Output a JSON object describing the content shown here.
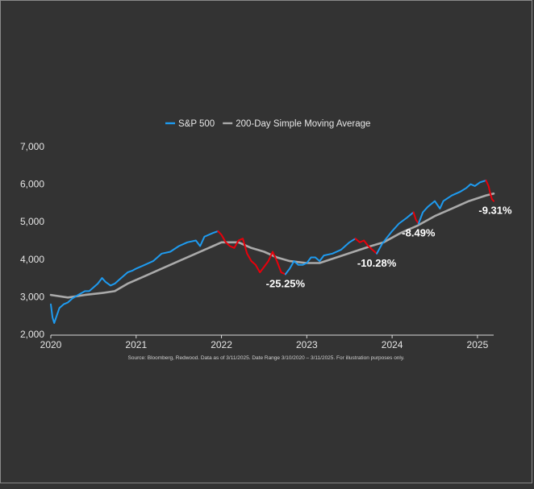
{
  "colors": {
    "background": "#333333",
    "sp500": "#1e9bf0",
    "drawdown": "#e8000b",
    "sma": "#aaaaaa",
    "text": "#e6e6e6"
  },
  "legend": [
    {
      "label": "S&P 500",
      "color": "#1e9bf0"
    },
    {
      "label": "200-Day Simple Moving Average",
      "color": "#aaaaaa"
    }
  ],
  "source_note": "Source: Bloomberg, Redwood. Data as of 3/11/2025. Date Range 3/10/2020 – 3/11/2025. For illustration purposes only.",
  "chart_data": {
    "type": "line",
    "title": "",
    "xlabel": "",
    "ylabel": "",
    "xlim": [
      2020.0,
      2025.19
    ],
    "ylim": [
      2000,
      7000
    ],
    "x_ticks": [
      "2020",
      "2021",
      "2022",
      "2023",
      "2024",
      "2025"
    ],
    "y_ticks": [
      "2,000",
      "3,000",
      "4,000",
      "5,000",
      "6,000",
      "7,000"
    ],
    "grid": false,
    "legend_position": "top",
    "series": [
      {
        "name": "S&P 500",
        "color": "#1e9bf0",
        "points": [
          [
            2020.0,
            2800
          ],
          [
            2020.02,
            2450
          ],
          [
            2020.04,
            2300
          ],
          [
            2020.07,
            2500
          ],
          [
            2020.1,
            2700
          ],
          [
            2020.15,
            2800
          ],
          [
            2020.2,
            2850
          ],
          [
            2020.25,
            2950
          ],
          [
            2020.32,
            3050
          ],
          [
            2020.4,
            3150
          ],
          [
            2020.45,
            3150
          ],
          [
            2020.5,
            3250
          ],
          [
            2020.55,
            3350
          ],
          [
            2020.6,
            3500
          ],
          [
            2020.64,
            3400
          ],
          [
            2020.7,
            3300
          ],
          [
            2020.75,
            3350
          ],
          [
            2020.8,
            3450
          ],
          [
            2020.85,
            3550
          ],
          [
            2020.9,
            3650
          ],
          [
            2020.96,
            3700
          ],
          [
            2021.0,
            3750
          ],
          [
            2021.1,
            3850
          ],
          [
            2021.2,
            3950
          ],
          [
            2021.3,
            4150
          ],
          [
            2021.4,
            4200
          ],
          [
            2021.5,
            4350
          ],
          [
            2021.6,
            4450
          ],
          [
            2021.7,
            4500
          ],
          [
            2021.75,
            4350
          ],
          [
            2021.8,
            4600
          ],
          [
            2021.9,
            4700
          ],
          [
            2021.96,
            4750
          ]
        ]
      },
      {
        "name": "",
        "color": "#e8000b",
        "drawdown_label": "-25.25%",
        "points": [
          [
            2021.96,
            4750
          ],
          [
            2022.0,
            4650
          ],
          [
            2022.05,
            4450
          ],
          [
            2022.1,
            4350
          ],
          [
            2022.15,
            4300
          ],
          [
            2022.2,
            4500
          ],
          [
            2022.25,
            4550
          ],
          [
            2022.3,
            4150
          ],
          [
            2022.35,
            3950
          ],
          [
            2022.4,
            3850
          ],
          [
            2022.45,
            3650
          ],
          [
            2022.5,
            3800
          ],
          [
            2022.55,
            3950
          ],
          [
            2022.6,
            4200
          ],
          [
            2022.65,
            3950
          ],
          [
            2022.7,
            3650
          ],
          [
            2022.75,
            3600
          ]
        ]
      },
      {
        "name": "",
        "color": "#1e9bf0",
        "points": [
          [
            2022.75,
            3600
          ],
          [
            2022.8,
            3750
          ],
          [
            2022.85,
            3950
          ],
          [
            2022.9,
            3850
          ],
          [
            2022.95,
            3850
          ],
          [
            2023.0,
            3900
          ],
          [
            2023.05,
            4050
          ],
          [
            2023.1,
            4050
          ],
          [
            2023.15,
            3950
          ],
          [
            2023.2,
            4100
          ],
          [
            2023.3,
            4150
          ],
          [
            2023.4,
            4250
          ],
          [
            2023.5,
            4450
          ],
          [
            2023.57,
            4550
          ]
        ]
      },
      {
        "name": "",
        "color": "#e8000b",
        "drawdown_label": "-10.28%",
        "points": [
          [
            2023.57,
            4550
          ],
          [
            2023.62,
            4450
          ],
          [
            2023.67,
            4500
          ],
          [
            2023.72,
            4350
          ],
          [
            2023.77,
            4250
          ],
          [
            2023.82,
            4150
          ]
        ]
      },
      {
        "name": "",
        "color": "#1e9bf0",
        "points": [
          [
            2023.82,
            4150
          ],
          [
            2023.88,
            4400
          ],
          [
            2023.93,
            4550
          ],
          [
            2024.0,
            4750
          ],
          [
            2024.08,
            4950
          ],
          [
            2024.17,
            5100
          ],
          [
            2024.25,
            5250
          ]
        ]
      },
      {
        "name": "",
        "color": "#e8000b",
        "drawdown_label": "-8.49%",
        "points": [
          [
            2024.25,
            5250
          ],
          [
            2024.28,
            5050
          ],
          [
            2024.31,
            4950
          ]
        ]
      },
      {
        "name": "",
        "color": "#1e9bf0",
        "points": [
          [
            2024.31,
            4950
          ],
          [
            2024.36,
            5250
          ],
          [
            2024.42,
            5400
          ],
          [
            2024.5,
            5550
          ],
          [
            2024.56,
            5350
          ],
          [
            2024.6,
            5550
          ],
          [
            2024.7,
            5700
          ],
          [
            2024.8,
            5800
          ],
          [
            2024.87,
            5900
          ],
          [
            2024.92,
            6000
          ],
          [
            2024.97,
            5950
          ],
          [
            2025.03,
            6050
          ],
          [
            2025.1,
            6100
          ]
        ]
      },
      {
        "name": "",
        "color": "#e8000b",
        "drawdown_label": "-9.31%",
        "points": [
          [
            2025.1,
            6100
          ],
          [
            2025.13,
            5950
          ],
          [
            2025.15,
            5750
          ],
          [
            2025.17,
            5600
          ],
          [
            2025.19,
            5550
          ]
        ]
      },
      {
        "name": "200-Day Simple Moving Average",
        "color": "#aaaaaa",
        "points": [
          [
            2020.0,
            3050
          ],
          [
            2020.2,
            2980
          ],
          [
            2020.4,
            3050
          ],
          [
            2020.6,
            3100
          ],
          [
            2020.75,
            3150
          ],
          [
            2020.9,
            3350
          ],
          [
            2021.1,
            3550
          ],
          [
            2021.3,
            3750
          ],
          [
            2021.5,
            3950
          ],
          [
            2021.7,
            4150
          ],
          [
            2021.9,
            4350
          ],
          [
            2022.0,
            4450
          ],
          [
            2022.2,
            4450
          ],
          [
            2022.35,
            4300
          ],
          [
            2022.5,
            4200
          ],
          [
            2022.65,
            4050
          ],
          [
            2022.8,
            3950
          ],
          [
            2023.0,
            3900
          ],
          [
            2023.15,
            3900
          ],
          [
            2023.35,
            4050
          ],
          [
            2023.55,
            4200
          ],
          [
            2023.75,
            4350
          ],
          [
            2023.9,
            4450
          ],
          [
            2024.1,
            4700
          ],
          [
            2024.3,
            4900
          ],
          [
            2024.5,
            5150
          ],
          [
            2024.7,
            5350
          ],
          [
            2024.9,
            5550
          ],
          [
            2025.1,
            5700
          ],
          [
            2025.19,
            5750
          ]
        ]
      }
    ]
  }
}
